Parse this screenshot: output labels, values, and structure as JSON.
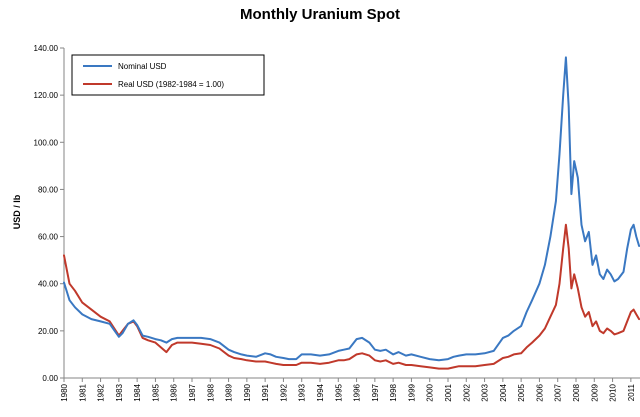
{
  "chart_data": {
    "type": "line",
    "title": "Monthly Uranium Spot",
    "xlabel": "",
    "ylabel": "USD / lb",
    "ylim": [
      0,
      140
    ],
    "xlim": [
      1980,
      2011.5
    ],
    "grid": false,
    "legend_position": "top-left",
    "y_ticks": [
      "0.00",
      "20.00",
      "40.00",
      "60.00",
      "80.00",
      "100.00",
      "120.00",
      "140.00"
    ],
    "x_ticks": [
      "1980",
      "1981",
      "1982",
      "1983",
      "1984",
      "1985",
      "1986",
      "1987",
      "1988",
      "1989",
      "1990",
      "1991",
      "1992",
      "1993",
      "1994",
      "1995",
      "1996",
      "1997",
      "1998",
      "1999",
      "2000",
      "2001",
      "2002",
      "2003",
      "2004",
      "2005",
      "2006",
      "2007",
      "2008",
      "2009",
      "2010",
      "2011"
    ],
    "series": [
      {
        "name": "Nominal USD",
        "color": "#3a78c2",
        "x": [
          1980,
          1980.3,
          1980.6,
          1981,
          1981.5,
          1982,
          1982.5,
          1983,
          1983.2,
          1983.5,
          1983.8,
          1984,
          1984.3,
          1984.6,
          1985,
          1985.3,
          1985.6,
          1985.9,
          1986.2,
          1986.6,
          1987,
          1987.5,
          1988,
          1988.5,
          1989,
          1989.3,
          1989.7,
          1990,
          1990.5,
          1991,
          1991.3,
          1991.6,
          1992,
          1992.3,
          1992.7,
          1993,
          1993.5,
          1994,
          1994.5,
          1995,
          1995.3,
          1995.6,
          1996,
          1996.3,
          1996.7,
          1997,
          1997.3,
          1997.6,
          1998,
          1998.3,
          1998.7,
          1999,
          1999.5,
          2000,
          2000.5,
          2001,
          2001.3,
          2001.6,
          2002,
          2002.5,
          2003,
          2003.5,
          2004,
          2004.3,
          2004.6,
          2005,
          2005.3,
          2005.6,
          2006,
          2006.3,
          2006.6,
          2006.9,
          2007.1,
          2007.3,
          2007.45,
          2007.6,
          2007.75,
          2007.9,
          2008.1,
          2008.3,
          2008.5,
          2008.7,
          2008.9,
          2009.1,
          2009.3,
          2009.5,
          2009.7,
          2009.9,
          2010.1,
          2010.3,
          2010.6,
          2010.8,
          2011.0,
          2011.15,
          2011.3,
          2011.45
        ],
        "values": [
          40.5,
          33,
          30,
          27,
          25,
          24,
          23,
          17.5,
          19,
          23,
          24.5,
          22.5,
          18,
          17.5,
          16.5,
          16,
          15,
          16.5,
          17,
          17,
          17,
          17,
          16.5,
          15,
          12,
          11,
          10,
          9.5,
          9,
          10.5,
          10,
          9,
          8.5,
          8,
          8,
          10,
          10,
          9.5,
          10,
          11.5,
          12,
          12.5,
          16.5,
          17,
          15,
          12,
          11.5,
          12,
          10,
          11,
          9.5,
          10,
          9,
          8,
          7.5,
          8,
          9,
          9.5,
          10,
          10,
          10.5,
          11.5,
          17,
          18,
          20,
          22,
          28,
          33,
          40,
          48,
          60,
          75,
          95,
          120,
          136,
          115,
          78,
          92,
          85,
          65,
          58,
          62,
          48,
          52,
          44,
          42,
          46,
          44,
          41,
          42,
          45,
          55,
          63,
          65,
          60,
          56
        ]
      },
      {
        "name": "Real USD (1982-1984 = 1.00)",
        "color": "#c0392b",
        "x": [
          1980,
          1980.3,
          1980.6,
          1981,
          1981.5,
          1982,
          1982.5,
          1983,
          1983.2,
          1983.5,
          1983.8,
          1984,
          1984.3,
          1984.6,
          1985,
          1985.3,
          1985.6,
          1985.9,
          1986.2,
          1986.6,
          1987,
          1987.5,
          1988,
          1988.5,
          1989,
          1989.3,
          1989.7,
          1990,
          1990.5,
          1991,
          1991.3,
          1991.6,
          1992,
          1992.3,
          1992.7,
          1993,
          1993.5,
          1994,
          1994.5,
          1995,
          1995.3,
          1995.6,
          1996,
          1996.3,
          1996.7,
          1997,
          1997.3,
          1997.6,
          1998,
          1998.3,
          1998.7,
          1999,
          1999.5,
          2000,
          2000.5,
          2001,
          2001.3,
          2001.6,
          2002,
          2002.5,
          2003,
          2003.5,
          2004,
          2004.3,
          2004.6,
          2005,
          2005.3,
          2005.6,
          2006,
          2006.3,
          2006.6,
          2006.9,
          2007.1,
          2007.3,
          2007.45,
          2007.6,
          2007.75,
          2007.9,
          2008.1,
          2008.3,
          2008.5,
          2008.7,
          2008.9,
          2009.1,
          2009.3,
          2009.5,
          2009.7,
          2009.9,
          2010.1,
          2010.3,
          2010.6,
          2010.8,
          2011.0,
          2011.15,
          2011.3,
          2011.45
        ],
        "values": [
          52,
          40,
          37,
          32,
          29,
          26,
          24,
          18,
          20,
          23,
          24,
          22,
          17,
          16,
          15,
          13,
          11,
          14,
          15,
          15,
          15,
          14.5,
          14,
          12.5,
          9.5,
          8.5,
          8,
          7.5,
          7,
          7,
          6.5,
          6,
          5.5,
          5.5,
          5.5,
          6.5,
          6.5,
          6,
          6.5,
          7.5,
          7.5,
          8,
          10,
          10.5,
          9.5,
          7.5,
          7,
          7.5,
          6,
          6.5,
          5.5,
          5.5,
          5,
          4.5,
          4,
          4,
          4.5,
          5,
          5,
          5,
          5.5,
          6,
          8.5,
          9,
          10,
          10.5,
          13,
          15,
          18,
          21,
          26,
          31,
          40,
          55,
          65,
          55,
          38,
          44,
          38,
          30,
          26,
          28,
          22,
          24,
          20,
          19,
          21,
          20,
          18.5,
          19,
          20,
          24,
          28,
          29,
          27,
          25
        ]
      }
    ]
  }
}
